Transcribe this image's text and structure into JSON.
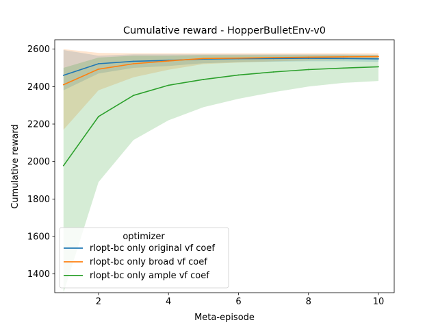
{
  "chart_data": {
    "type": "line",
    "title": "Cumulative reward - HopperBulletEnv-v0",
    "xlabel": "Meta-episode",
    "ylabel": "Cumulative reward",
    "xlim": [
      0.75,
      10.45
    ],
    "ylim": [
      1300,
      2650
    ],
    "xticks": [
      2,
      4,
      6,
      8,
      10
    ],
    "yticks": [
      1400,
      1600,
      1800,
      2000,
      2200,
      2400,
      2600
    ],
    "grid": false,
    "legend": {
      "title": "optimizer",
      "placement": "lower-left"
    },
    "x": [
      1,
      2,
      3,
      4,
      5,
      6,
      7,
      8,
      9,
      10
    ],
    "series": [
      {
        "name": "rlopt-bc only original vf coef",
        "color": "#1f77b4",
        "values": [
          2460,
          2522,
          2535,
          2540,
          2547,
          2549,
          2550,
          2551,
          2550,
          2548
        ],
        "lower": [
          2380,
          2470,
          2500,
          2510,
          2525,
          2530,
          2533,
          2535,
          2535,
          2532
        ],
        "upper": [
          2595,
          2565,
          2572,
          2572,
          2572,
          2572,
          2572,
          2572,
          2572,
          2570
        ]
      },
      {
        "name": "rlopt-bc only broad vf coef",
        "color": "#ff7f0e",
        "values": [
          2410,
          2493,
          2522,
          2537,
          2550,
          2552,
          2555,
          2557,
          2559,
          2560
        ],
        "lower": [
          2170,
          2380,
          2450,
          2490,
          2520,
          2528,
          2535,
          2540,
          2545,
          2548
        ],
        "upper": [
          2600,
          2580,
          2578,
          2578,
          2578,
          2578,
          2578,
          2578,
          2578,
          2578
        ]
      },
      {
        "name": "rlopt-bc only ample vf coef",
        "color": "#2ca02c",
        "values": [
          1978,
          2240,
          2353,
          2407,
          2438,
          2462,
          2478,
          2491,
          2499,
          2506
        ],
        "lower": [
          1300,
          1890,
          2115,
          2220,
          2290,
          2335,
          2370,
          2400,
          2420,
          2430
        ],
        "upper": [
          2500,
          2555,
          2565,
          2565,
          2568,
          2568,
          2568,
          2568,
          2568,
          2568
        ]
      }
    ]
  }
}
